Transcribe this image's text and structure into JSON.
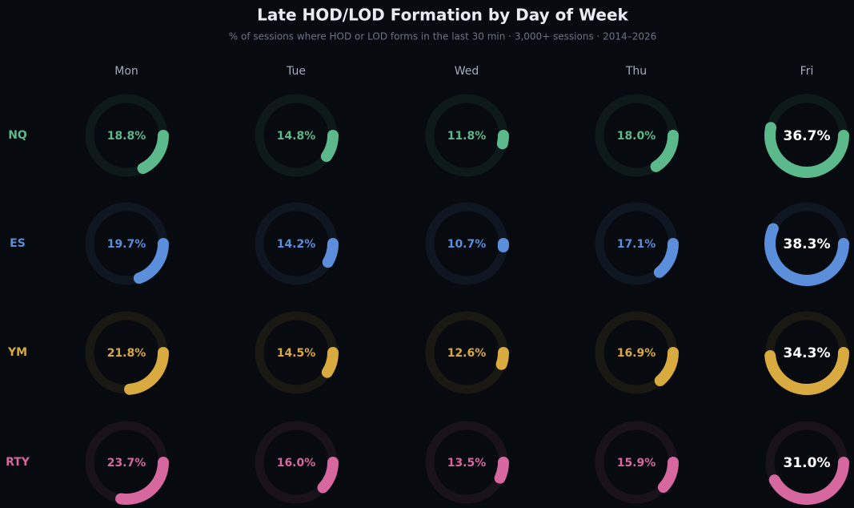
{
  "chart_data": {
    "type": "donut-grid",
    "title": "Late HOD/LOD Formation by Day of Week",
    "subtitle": "% of sessions where HOD or LOD forms in the last 30 min · 3,000+ sessions · 2014–2026",
    "categories": [
      "Mon",
      "Tue",
      "Wed",
      "Thu",
      "Fri"
    ],
    "ylim": [
      10,
      60
    ],
    "series": [
      {
        "name": "NQ",
        "color": "#5bb98b",
        "values": [
          18.8,
          14.8,
          11.8,
          18.0,
          36.7
        ],
        "value_labels": [
          "18.8%",
          "14.8%",
          "11.8%",
          "18.0%",
          "36.7%"
        ]
      },
      {
        "name": "ES",
        "color": "#5b8edb",
        "values": [
          19.7,
          14.2,
          10.7,
          17.1,
          38.3
        ],
        "value_labels": [
          "19.7%",
          "14.2%",
          "10.7%",
          "17.1%",
          "38.3%"
        ]
      },
      {
        "name": "YM",
        "color": "#d9aa40",
        "values": [
          21.8,
          14.5,
          12.6,
          16.9,
          34.3
        ],
        "value_labels": [
          "21.8%",
          "14.5%",
          "12.6%",
          "16.9%",
          "34.3%"
        ]
      },
      {
        "name": "RTY",
        "color": "#d6689f",
        "values": [
          23.7,
          16.0,
          13.5,
          15.9,
          31.0
        ],
        "value_labels": [
          "23.7%",
          "16.0%",
          "13.5%",
          "15.9%",
          "31.0%"
        ]
      }
    ]
  }
}
